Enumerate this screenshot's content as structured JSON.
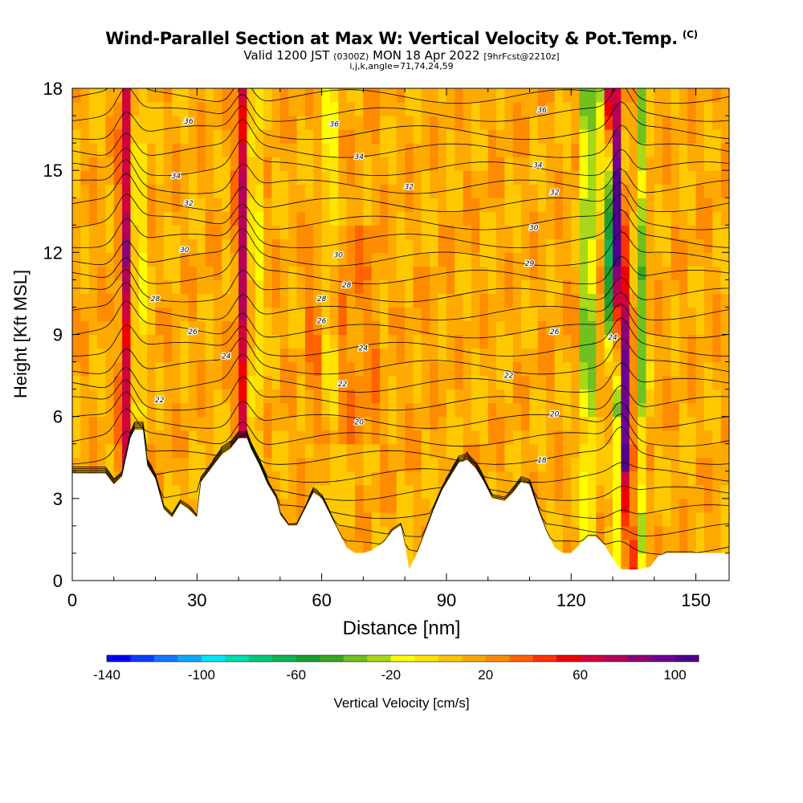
{
  "header": {
    "title": "Wind-Parallel Section at Max W: Vertical Velocity & Pot.Temp.",
    "copyright": "(C)",
    "valid_prefix": "Valid 1200 JST",
    "valid_utc": "(0300Z)",
    "valid_date": "MON 18 Apr 2022",
    "forecast": "[9hrFcst@2210z]",
    "params": "i,j,k,angle=71,74,24,59"
  },
  "chart_data": {
    "type": "heatmap",
    "xlabel": "Distance [nm]",
    "ylabel": "Height [Kft MSL]",
    "xlim": [
      0,
      158
    ],
    "ylim": [
      0,
      18
    ],
    "x_ticks": [
      0,
      30,
      60,
      90,
      120,
      150
    ],
    "y_ticks": [
      0,
      3,
      6,
      9,
      12,
      15,
      18
    ],
    "colorbar": {
      "label": "Vertical Velocity [cm/s]",
      "min": -140,
      "max": 110,
      "step": 10,
      "tick_labels": [
        "-140",
        "-100",
        "-60",
        "-20",
        "20",
        "60",
        "100"
      ],
      "colors": [
        "#0000ff",
        "#0a3cff",
        "#1478ff",
        "#10a8ff",
        "#00e6ff",
        "#00dcb4",
        "#00c87a",
        "#10b450",
        "#18a032",
        "#38a824",
        "#70c020",
        "#a8d818",
        "#ffff00",
        "#ffe400",
        "#ffc800",
        "#ffaa00",
        "#ff8c00",
        "#ff6400",
        "#ff3200",
        "#f00000",
        "#d2003c",
        "#b4005a",
        "#8c0078",
        "#6e0096",
        "#50008c"
      ]
    },
    "ascending_cores_x_nm": [
      13,
      41,
      132
    ],
    "descending_cores_x_nm": [
      16,
      44,
      62,
      124,
      130,
      137
    ],
    "terrain_kft": [
      [
        0,
        3.9
      ],
      [
        8,
        3.9
      ],
      [
        10,
        3.5
      ],
      [
        12,
        3.8
      ],
      [
        14,
        5.2
      ],
      [
        15,
        5.5
      ],
      [
        17,
        5.5
      ],
      [
        18,
        4.2
      ],
      [
        20,
        3.7
      ],
      [
        22,
        2.6
      ],
      [
        24,
        2.3
      ],
      [
        26,
        2.8
      ],
      [
        28,
        2.6
      ],
      [
        30,
        2.3
      ],
      [
        31,
        3.6
      ],
      [
        33,
        4.0
      ],
      [
        36,
        4.6
      ],
      [
        38,
        4.8
      ],
      [
        40,
        5.2
      ],
      [
        42,
        5.2
      ],
      [
        43,
        4.8
      ],
      [
        45,
        4.2
      ],
      [
        47,
        3.5
      ],
      [
        49,
        3.0
      ],
      [
        50,
        2.4
      ],
      [
        52,
        2.0
      ],
      [
        54,
        2.0
      ],
      [
        56,
        2.6
      ],
      [
        58,
        3.2
      ],
      [
        60,
        3.0
      ],
      [
        62,
        2.4
      ],
      [
        64,
        1.8
      ],
      [
        66,
        1.2
      ],
      [
        68,
        1.0
      ],
      [
        70,
        1.0
      ],
      [
        72,
        1.1
      ],
      [
        75,
        1.4
      ],
      [
        77,
        1.8
      ],
      [
        79,
        2.0
      ],
      [
        80,
        1.3
      ],
      [
        81,
        0.4
      ],
      [
        83,
        1.0
      ],
      [
        85,
        1.8
      ],
      [
        87,
        2.6
      ],
      [
        89,
        3.3
      ],
      [
        91,
        3.8
      ],
      [
        93,
        4.3
      ],
      [
        95,
        4.4
      ],
      [
        97,
        4.1
      ],
      [
        99,
        3.6
      ],
      [
        101,
        3.0
      ],
      [
        104,
        2.9
      ],
      [
        106,
        3.2
      ],
      [
        108,
        3.6
      ],
      [
        110,
        3.5
      ],
      [
        112,
        2.6
      ],
      [
        114,
        1.8
      ],
      [
        116,
        1.2
      ],
      [
        118,
        1.0
      ],
      [
        120,
        1.0
      ],
      [
        122,
        1.3
      ],
      [
        124,
        1.6
      ],
      [
        126,
        1.6
      ],
      [
        128,
        1.3
      ],
      [
        130,
        0.8
      ],
      [
        132,
        0.4
      ],
      [
        136,
        0.4
      ],
      [
        139,
        0.5
      ],
      [
        141,
        0.9
      ],
      [
        143,
        1.0
      ],
      [
        158,
        1.0
      ]
    ],
    "theta_contour_labels": [
      "36",
      "36",
      "36",
      "34",
      "34",
      "34",
      "32",
      "32",
      "32",
      "30",
      "30",
      "30",
      "29",
      "28",
      "28",
      "28",
      "26",
      "26",
      "26",
      "24",
      "24",
      "24",
      "22",
      "22",
      "22",
      "20",
      "20",
      "18"
    ],
    "grid": false
  }
}
